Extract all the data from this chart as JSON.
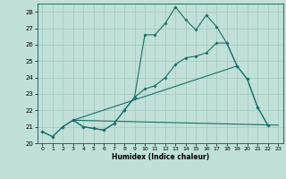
{
  "title": "",
  "xlabel": "Humidex (Indice chaleur)",
  "xlim": [
    -0.5,
    23.5
  ],
  "ylim": [
    20,
    28.5
  ],
  "yticks": [
    20,
    21,
    22,
    23,
    24,
    25,
    26,
    27,
    28
  ],
  "xticks": [
    0,
    1,
    2,
    3,
    4,
    5,
    6,
    7,
    8,
    9,
    10,
    11,
    12,
    13,
    14,
    15,
    16,
    17,
    18,
    19,
    20,
    21,
    22,
    23
  ],
  "bg_color": "#c0e0d8",
  "grid_color": "#a0c8c0",
  "line_color": "#1a6e68",
  "line1_x": [
    0,
    1,
    2,
    3,
    4,
    5,
    6,
    7,
    8,
    9,
    10,
    11,
    12,
    13,
    14,
    15,
    16,
    17,
    18,
    19,
    20,
    21,
    22
  ],
  "line1_y": [
    20.7,
    20.4,
    21.0,
    21.4,
    21.0,
    20.9,
    20.8,
    21.2,
    22.0,
    22.8,
    26.6,
    26.6,
    27.3,
    28.3,
    27.5,
    26.9,
    27.8,
    27.1,
    26.1,
    24.7,
    23.9,
    22.2,
    21.1
  ],
  "line2_x": [
    0,
    1,
    2,
    3,
    4,
    5,
    6,
    7,
    8,
    9,
    10,
    11,
    12,
    13,
    14,
    15,
    16,
    17,
    18,
    19,
    20,
    21,
    22
  ],
  "line2_y": [
    20.7,
    20.4,
    21.0,
    21.4,
    21.0,
    20.9,
    20.8,
    21.2,
    22.0,
    22.8,
    23.3,
    23.5,
    24.0,
    24.8,
    25.2,
    25.3,
    25.5,
    26.1,
    26.1,
    24.7,
    23.9,
    22.2,
    21.1
  ],
  "line3_x": [
    3,
    23
  ],
  "line3_y": [
    21.4,
    21.1
  ],
  "line4_x": [
    3,
    19
  ],
  "line4_y": [
    21.4,
    24.7
  ]
}
